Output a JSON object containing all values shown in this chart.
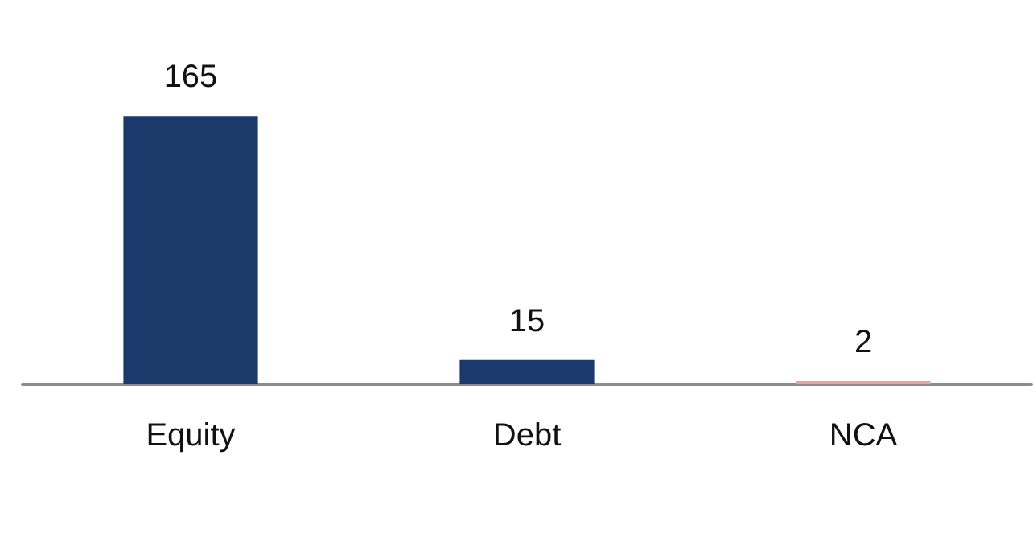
{
  "chart_data": {
    "type": "bar",
    "categories": [
      "Equity",
      "Debt",
      "NCA"
    ],
    "values": [
      165,
      15,
      2
    ],
    "colors": [
      "#1b3a6b",
      "#1b3a6b",
      "#e8a79a"
    ],
    "data_labels": true
  }
}
